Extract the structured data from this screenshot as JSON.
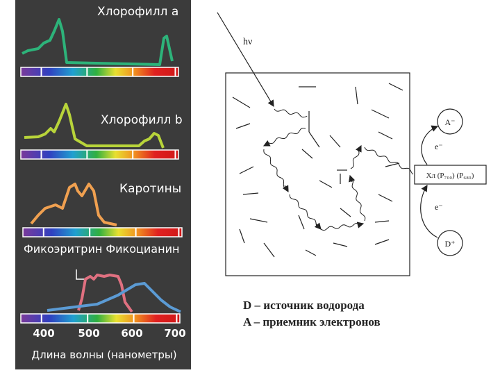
{
  "spectra": {
    "pigments": [
      "Хлорофилл a",
      "Хлорофилл b",
      "Каротины"
    ],
    "phyco_label": "Фикоэритрин Фикоцианин",
    "wavelengths": [
      "400",
      "500",
      "600",
      "700"
    ],
    "axis_label": "Длина волны (нанометры)"
  },
  "scheme": {
    "light": "hν",
    "center": "Хл (P₇₀₀) (P₆₈₀)",
    "acceptor": "A⁻",
    "donor": "D⁺",
    "electron_top": "e⁻",
    "electron_bottom": "e⁻",
    "legend": [
      "D – источник водорода",
      "A – приемник электронов"
    ]
  }
}
